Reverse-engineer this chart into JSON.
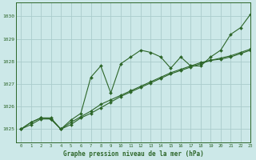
{
  "title": "Graphe pression niveau de la mer (hPa)",
  "background_color": "#cce8e8",
  "grid_color": "#aacccc",
  "line_color": "#2d6629",
  "xlim": [
    -0.5,
    23
  ],
  "ylim": [
    1024.4,
    1030.6
  ],
  "yticks": [
    1025,
    1026,
    1027,
    1028,
    1029,
    1030
  ],
  "xticks": [
    0,
    1,
    2,
    3,
    4,
    5,
    6,
    7,
    8,
    9,
    10,
    11,
    12,
    13,
    14,
    15,
    16,
    17,
    18,
    19,
    20,
    21,
    22,
    23
  ],
  "series1_x": [
    0,
    1,
    2,
    3,
    4,
    5,
    6,
    7,
    8,
    9,
    10,
    11,
    12,
    13,
    14,
    15,
    16,
    17,
    18,
    19,
    20,
    21,
    22,
    23
  ],
  "series1": [
    1025.0,
    1025.3,
    1025.5,
    1025.5,
    1025.0,
    1025.4,
    1025.7,
    1027.3,
    1027.8,
    1026.6,
    1027.9,
    1028.2,
    1028.5,
    1028.4,
    1028.2,
    1027.7,
    1028.2,
    1027.8,
    1027.8,
    1028.2,
    1028.5,
    1029.2,
    1029.5,
    1030.1
  ],
  "series2_x": [
    0,
    1,
    2,
    3,
    4,
    5,
    6,
    7,
    8,
    9,
    10,
    11,
    12,
    13,
    14,
    15,
    16,
    17,
    18,
    19,
    20,
    21,
    22,
    23
  ],
  "series2": [
    1025.0,
    1025.3,
    1025.5,
    1025.45,
    1025.0,
    1025.2,
    1025.5,
    1025.7,
    1025.95,
    1026.2,
    1026.45,
    1026.65,
    1026.85,
    1027.05,
    1027.25,
    1027.45,
    1027.6,
    1027.75,
    1027.9,
    1028.05,
    1028.1,
    1028.2,
    1028.35,
    1028.5
  ],
  "series3_x": [
    0,
    1,
    2,
    3,
    4,
    5,
    6,
    7,
    8,
    9,
    10,
    11,
    12,
    13,
    14,
    15,
    16,
    17,
    18,
    19,
    20,
    21,
    22,
    23
  ],
  "series3": [
    1025.0,
    1025.2,
    1025.45,
    1025.45,
    1025.0,
    1025.3,
    1025.55,
    1025.8,
    1026.1,
    1026.3,
    1026.5,
    1026.7,
    1026.9,
    1027.1,
    1027.3,
    1027.5,
    1027.65,
    1027.8,
    1027.95,
    1028.05,
    1028.15,
    1028.25,
    1028.4,
    1028.55
  ]
}
